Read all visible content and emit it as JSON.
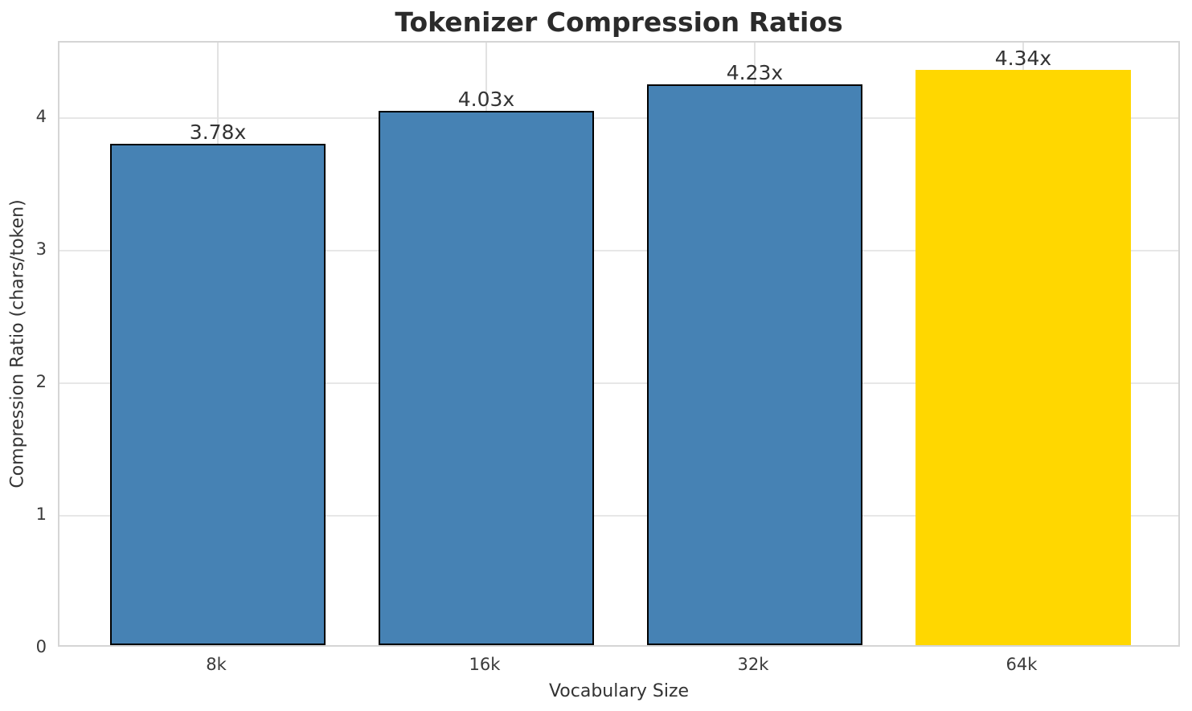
{
  "chart_data": {
    "type": "bar",
    "title": "Tokenizer Compression Ratios",
    "xlabel": "Vocabulary Size",
    "ylabel": "Compression Ratio (chars/token)",
    "categories": [
      "8k",
      "16k",
      "32k",
      "64k"
    ],
    "values": [
      3.78,
      4.03,
      4.23,
      4.34
    ],
    "bar_labels": [
      "3.78x",
      "4.03x",
      "4.23x",
      "4.34x"
    ],
    "yticks": [
      0,
      1,
      2,
      3,
      4
    ],
    "ytick_labels": [
      "0",
      "1",
      "2",
      "3",
      "4"
    ],
    "ylim": [
      0,
      4.57
    ],
    "grid": true,
    "legend": "none",
    "bar_colors": [
      "#4682B4",
      "#4682B4",
      "#4682B4",
      "#FFD700"
    ],
    "bar_edge_colors": [
      "#000000",
      "#000000",
      "#000000",
      "none"
    ],
    "highlight_index": 3,
    "colors": {
      "bar_blue": "#4682B4",
      "bar_gold": "#FFD700",
      "bar_edge": "#000000",
      "grid": "#e5e5e5",
      "spine": "#d5d5d5",
      "text": "#333333",
      "title_text": "#2b2b2b"
    }
  }
}
